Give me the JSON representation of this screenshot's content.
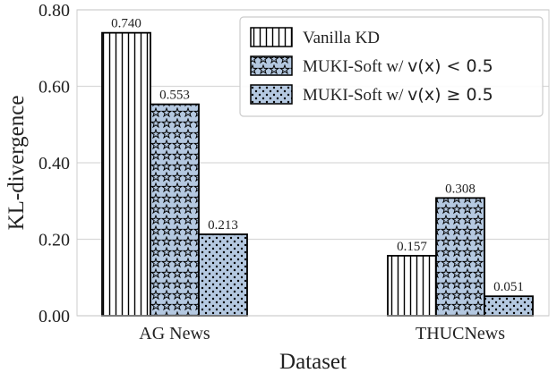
{
  "chart_data": {
    "type": "bar",
    "xlabel": "Dataset",
    "ylabel": "KL-divergence",
    "categories": [
      "AG News",
      "THUCNews"
    ],
    "ylim": [
      0,
      0.8
    ],
    "yticks": [
      "0.00",
      "0.20",
      "0.40",
      "0.60",
      "0.80"
    ],
    "grid": true,
    "legend_position": "top-right",
    "series": [
      {
        "name": "Vanilla KD",
        "values": [
          0.74,
          0.157
        ],
        "labels": [
          "0.740",
          "0.157"
        ],
        "pattern": "vertical-lines",
        "color": "#ffffff"
      },
      {
        "name": "MUKI-Soft w/ v(x) < 0.5",
        "legend_prefix": "MUKI-Soft w/ ",
        "legend_math": "v(x) < 0.5",
        "values": [
          0.553,
          0.308
        ],
        "labels": [
          "0.553",
          "0.308"
        ],
        "pattern": "stars",
        "color": "#b4c8e0"
      },
      {
        "name": "MUKI-Soft w/ v(x) ≥ 0.5",
        "legend_prefix": "MUKI-Soft w/ ",
        "legend_math": "v(x) ≥ 0.5",
        "values": [
          0.213,
          0.051
        ],
        "labels": [
          "0.213",
          "0.051"
        ],
        "pattern": "dots",
        "color": "#b4c8e0"
      }
    ]
  }
}
